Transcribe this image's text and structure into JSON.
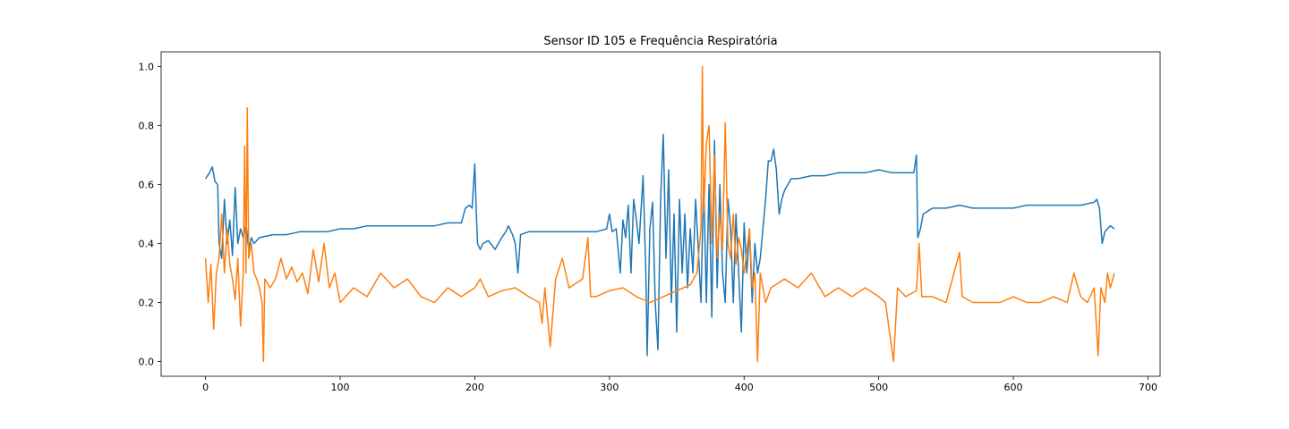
{
  "chart_data": {
    "type": "line",
    "title": "Sensor ID 105 e Frequência Respiratória",
    "xlabel": "",
    "ylabel": "",
    "xlim": [
      -33,
      709
    ],
    "ylim": [
      -0.05,
      1.05
    ],
    "x_ticks": [
      0,
      100,
      200,
      300,
      400,
      500,
      600,
      700
    ],
    "y_ticks": [
      0.0,
      0.2,
      0.4,
      0.6,
      0.8,
      1.0
    ],
    "x_tick_labels": [
      "0",
      "100",
      "200",
      "300",
      "400",
      "500",
      "600",
      "700"
    ],
    "y_tick_labels": [
      "0.0",
      "0.2",
      "0.4",
      "0.6",
      "0.8",
      "1.0"
    ],
    "grid": false,
    "legend": "none",
    "series": [
      {
        "color": "#1f77b4",
        "points": [
          [
            0,
            0.62
          ],
          [
            3,
            0.64
          ],
          [
            5,
            0.66
          ],
          [
            7,
            0.61
          ],
          [
            9,
            0.6
          ],
          [
            10,
            0.4
          ],
          [
            12,
            0.35
          ],
          [
            14,
            0.55
          ],
          [
            16,
            0.4
          ],
          [
            18,
            0.48
          ],
          [
            20,
            0.36
          ],
          [
            22,
            0.59
          ],
          [
            24,
            0.4
          ],
          [
            26,
            0.45
          ],
          [
            28,
            0.42
          ],
          [
            30,
            0.47
          ],
          [
            32,
            0.38
          ],
          [
            34,
            0.42
          ],
          [
            36,
            0.4
          ],
          [
            40,
            0.42
          ],
          [
            50,
            0.43
          ],
          [
            60,
            0.43
          ],
          [
            70,
            0.44
          ],
          [
            80,
            0.44
          ],
          [
            90,
            0.44
          ],
          [
            100,
            0.45
          ],
          [
            110,
            0.45
          ],
          [
            120,
            0.46
          ],
          [
            130,
            0.46
          ],
          [
            140,
            0.46
          ],
          [
            150,
            0.46
          ],
          [
            160,
            0.46
          ],
          [
            170,
            0.46
          ],
          [
            180,
            0.47
          ],
          [
            190,
            0.47
          ],
          [
            193,
            0.52
          ],
          [
            196,
            0.53
          ],
          [
            198,
            0.52
          ],
          [
            200,
            0.67
          ],
          [
            201,
            0.52
          ],
          [
            202,
            0.4
          ],
          [
            204,
            0.38
          ],
          [
            206,
            0.4
          ],
          [
            210,
            0.41
          ],
          [
            215,
            0.38
          ],
          [
            220,
            0.42
          ],
          [
            223,
            0.44
          ],
          [
            225,
            0.46
          ],
          [
            228,
            0.43
          ],
          [
            230,
            0.4
          ],
          [
            232,
            0.3
          ],
          [
            234,
            0.43
          ],
          [
            240,
            0.44
          ],
          [
            250,
            0.44
          ],
          [
            260,
            0.44
          ],
          [
            270,
            0.44
          ],
          [
            280,
            0.44
          ],
          [
            290,
            0.44
          ],
          [
            298,
            0.45
          ],
          [
            300,
            0.5
          ],
          [
            302,
            0.44
          ],
          [
            305,
            0.45
          ],
          [
            308,
            0.3
          ],
          [
            310,
            0.48
          ],
          [
            312,
            0.42
          ],
          [
            314,
            0.53
          ],
          [
            316,
            0.3
          ],
          [
            318,
            0.55
          ],
          [
            320,
            0.48
          ],
          [
            322,
            0.4
          ],
          [
            325,
            0.63
          ],
          [
            327,
            0.3
          ],
          [
            328,
            0.02
          ],
          [
            330,
            0.45
          ],
          [
            332,
            0.54
          ],
          [
            334,
            0.2
          ],
          [
            336,
            0.04
          ],
          [
            338,
            0.55
          ],
          [
            340,
            0.77
          ],
          [
            342,
            0.35
          ],
          [
            344,
            0.65
          ],
          [
            346,
            0.2
          ],
          [
            348,
            0.5
          ],
          [
            350,
            0.1
          ],
          [
            352,
            0.55
          ],
          [
            354,
            0.3
          ],
          [
            356,
            0.5
          ],
          [
            358,
            0.25
          ],
          [
            360,
            0.45
          ],
          [
            362,
            0.3
          ],
          [
            364,
            0.55
          ],
          [
            366,
            0.38
          ],
          [
            368,
            0.2
          ],
          [
            370,
            0.62
          ],
          [
            372,
            0.2
          ],
          [
            374,
            0.6
          ],
          [
            376,
            0.15
          ],
          [
            378,
            0.75
          ],
          [
            380,
            0.25
          ],
          [
            382,
            0.6
          ],
          [
            384,
            0.3
          ],
          [
            386,
            0.2
          ],
          [
            388,
            0.55
          ],
          [
            390,
            0.45
          ],
          [
            392,
            0.2
          ],
          [
            394,
            0.5
          ],
          [
            396,
            0.3
          ],
          [
            398,
            0.1
          ],
          [
            400,
            0.47
          ],
          [
            402,
            0.3
          ],
          [
            404,
            0.45
          ],
          [
            406,
            0.2
          ],
          [
            408,
            0.4
          ],
          [
            410,
            0.3
          ],
          [
            412,
            0.35
          ],
          [
            414,
            0.45
          ],
          [
            416,
            0.55
          ],
          [
            418,
            0.68
          ],
          [
            420,
            0.68
          ],
          [
            422,
            0.72
          ],
          [
            424,
            0.65
          ],
          [
            426,
            0.5
          ],
          [
            428,
            0.55
          ],
          [
            430,
            0.58
          ],
          [
            435,
            0.62
          ],
          [
            440,
            0.62
          ],
          [
            450,
            0.63
          ],
          [
            460,
            0.63
          ],
          [
            470,
            0.64
          ],
          [
            480,
            0.64
          ],
          [
            490,
            0.64
          ],
          [
            500,
            0.65
          ],
          [
            510,
            0.64
          ],
          [
            520,
            0.64
          ],
          [
            526,
            0.64
          ],
          [
            528,
            0.7
          ],
          [
            529,
            0.42
          ],
          [
            531,
            0.45
          ],
          [
            533,
            0.5
          ],
          [
            540,
            0.52
          ],
          [
            550,
            0.52
          ],
          [
            560,
            0.53
          ],
          [
            570,
            0.52
          ],
          [
            580,
            0.52
          ],
          [
            590,
            0.52
          ],
          [
            600,
            0.52
          ],
          [
            610,
            0.53
          ],
          [
            620,
            0.53
          ],
          [
            630,
            0.53
          ],
          [
            640,
            0.53
          ],
          [
            650,
            0.53
          ],
          [
            660,
            0.54
          ],
          [
            662,
            0.55
          ],
          [
            664,
            0.52
          ],
          [
            666,
            0.4
          ],
          [
            668,
            0.44
          ],
          [
            670,
            0.45
          ],
          [
            672,
            0.46
          ],
          [
            675,
            0.45
          ]
        ]
      },
      {
        "color": "#ff7f0e",
        "points": [
          [
            0,
            0.35
          ],
          [
            2,
            0.2
          ],
          [
            4,
            0.33
          ],
          [
            6,
            0.11
          ],
          [
            8,
            0.3
          ],
          [
            10,
            0.35
          ],
          [
            12,
            0.5
          ],
          [
            14,
            0.3
          ],
          [
            16,
            0.45
          ],
          [
            18,
            0.33
          ],
          [
            20,
            0.28
          ],
          [
            22,
            0.21
          ],
          [
            24,
            0.35
          ],
          [
            26,
            0.12
          ],
          [
            28,
            0.3
          ],
          [
            29,
            0.73
          ],
          [
            30,
            0.3
          ],
          [
            31,
            0.86
          ],
          [
            32,
            0.35
          ],
          [
            34,
            0.4
          ],
          [
            36,
            0.3
          ],
          [
            38,
            0.28
          ],
          [
            40,
            0.25
          ],
          [
            42,
            0.2
          ],
          [
            43,
            0.0
          ],
          [
            44,
            0.28
          ],
          [
            48,
            0.25
          ],
          [
            52,
            0.28
          ],
          [
            56,
            0.35
          ],
          [
            60,
            0.28
          ],
          [
            64,
            0.32
          ],
          [
            68,
            0.27
          ],
          [
            72,
            0.3
          ],
          [
            76,
            0.23
          ],
          [
            80,
            0.38
          ],
          [
            84,
            0.27
          ],
          [
            88,
            0.4
          ],
          [
            92,
            0.25
          ],
          [
            96,
            0.3
          ],
          [
            100,
            0.2
          ],
          [
            110,
            0.25
          ],
          [
            120,
            0.22
          ],
          [
            130,
            0.3
          ],
          [
            140,
            0.25
          ],
          [
            150,
            0.28
          ],
          [
            160,
            0.22
          ],
          [
            170,
            0.2
          ],
          [
            180,
            0.25
          ],
          [
            190,
            0.22
          ],
          [
            200,
            0.25
          ],
          [
            204,
            0.28
          ],
          [
            210,
            0.22
          ],
          [
            220,
            0.24
          ],
          [
            230,
            0.25
          ],
          [
            240,
            0.22
          ],
          [
            248,
            0.2
          ],
          [
            250,
            0.13
          ],
          [
            252,
            0.25
          ],
          [
            256,
            0.05
          ],
          [
            260,
            0.28
          ],
          [
            265,
            0.35
          ],
          [
            270,
            0.25
          ],
          [
            280,
            0.28
          ],
          [
            284,
            0.42
          ],
          [
            286,
            0.22
          ],
          [
            290,
            0.22
          ],
          [
            300,
            0.24
          ],
          [
            310,
            0.25
          ],
          [
            320,
            0.22
          ],
          [
            330,
            0.2
          ],
          [
            340,
            0.22
          ],
          [
            350,
            0.24
          ],
          [
            360,
            0.26
          ],
          [
            365,
            0.3
          ],
          [
            368,
            0.45
          ],
          [
            369,
            1.0
          ],
          [
            370,
            0.5
          ],
          [
            372,
            0.74
          ],
          [
            374,
            0.8
          ],
          [
            376,
            0.4
          ],
          [
            378,
            0.7
          ],
          [
            380,
            0.35
          ],
          [
            382,
            0.5
          ],
          [
            384,
            0.38
          ],
          [
            386,
            0.81
          ],
          [
            388,
            0.4
          ],
          [
            390,
            0.35
          ],
          [
            392,
            0.5
          ],
          [
            394,
            0.33
          ],
          [
            396,
            0.42
          ],
          [
            398,
            0.38
          ],
          [
            400,
            0.3
          ],
          [
            404,
            0.45
          ],
          [
            406,
            0.25
          ],
          [
            408,
            0.3
          ],
          [
            410,
            0.0
          ],
          [
            412,
            0.3
          ],
          [
            416,
            0.2
          ],
          [
            420,
            0.25
          ],
          [
            430,
            0.28
          ],
          [
            440,
            0.25
          ],
          [
            450,
            0.3
          ],
          [
            460,
            0.22
          ],
          [
            470,
            0.25
          ],
          [
            480,
            0.22
          ],
          [
            490,
            0.25
          ],
          [
            500,
            0.22
          ],
          [
            505,
            0.2
          ],
          [
            508,
            0.1
          ],
          [
            511,
            0.0
          ],
          [
            514,
            0.25
          ],
          [
            520,
            0.22
          ],
          [
            528,
            0.24
          ],
          [
            530,
            0.4
          ],
          [
            532,
            0.22
          ],
          [
            540,
            0.22
          ],
          [
            550,
            0.2
          ],
          [
            560,
            0.37
          ],
          [
            562,
            0.22
          ],
          [
            570,
            0.2
          ],
          [
            580,
            0.2
          ],
          [
            590,
            0.2
          ],
          [
            600,
            0.22
          ],
          [
            610,
            0.2
          ],
          [
            620,
            0.2
          ],
          [
            630,
            0.22
          ],
          [
            640,
            0.2
          ],
          [
            645,
            0.3
          ],
          [
            650,
            0.22
          ],
          [
            655,
            0.2
          ],
          [
            660,
            0.25
          ],
          [
            663,
            0.02
          ],
          [
            665,
            0.25
          ],
          [
            668,
            0.2
          ],
          [
            670,
            0.3
          ],
          [
            672,
            0.25
          ],
          [
            675,
            0.3
          ]
        ]
      }
    ]
  }
}
